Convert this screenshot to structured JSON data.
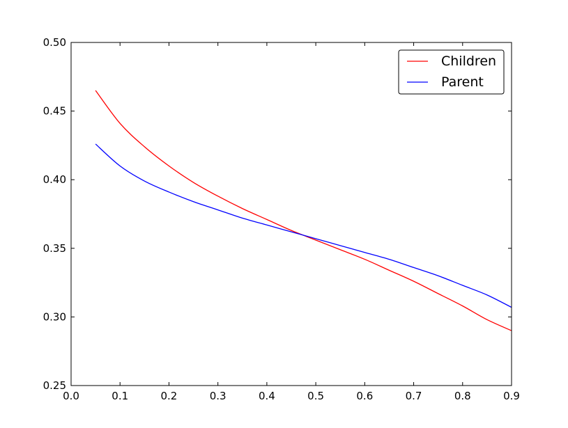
{
  "chart_data": {
    "type": "line",
    "title": "",
    "xlabel": "",
    "ylabel": "",
    "xlim": [
      0.0,
      0.9
    ],
    "ylim": [
      0.25,
      0.5
    ],
    "x_ticks": [
      "0.0",
      "0.1",
      "0.2",
      "0.3",
      "0.4",
      "0.5",
      "0.6",
      "0.7",
      "0.8",
      "0.9"
    ],
    "y_ticks": [
      "0.25",
      "0.30",
      "0.35",
      "0.40",
      "0.45",
      "0.50"
    ],
    "grid": false,
    "legend_position": "top-right",
    "series": [
      {
        "name": "Children",
        "color": "#ff0000",
        "x": [
          0.05,
          0.1,
          0.15,
          0.2,
          0.25,
          0.3,
          0.35,
          0.4,
          0.45,
          0.5,
          0.55,
          0.6,
          0.65,
          0.7,
          0.75,
          0.8,
          0.85,
          0.9
        ],
        "y": [
          0.465,
          0.441,
          0.424,
          0.41,
          0.398,
          0.388,
          0.379,
          0.371,
          0.363,
          0.356,
          0.349,
          0.342,
          0.334,
          0.326,
          0.317,
          0.308,
          0.298,
          0.29
        ]
      },
      {
        "name": "Parent",
        "color": "#0000ff",
        "x": [
          0.05,
          0.1,
          0.15,
          0.2,
          0.25,
          0.3,
          0.35,
          0.4,
          0.45,
          0.5,
          0.55,
          0.6,
          0.65,
          0.7,
          0.75,
          0.8,
          0.85,
          0.9
        ],
        "y": [
          0.426,
          0.41,
          0.399,
          0.391,
          0.384,
          0.378,
          0.372,
          0.367,
          0.362,
          0.357,
          0.352,
          0.347,
          0.342,
          0.336,
          0.33,
          0.323,
          0.316,
          0.307
        ]
      }
    ]
  }
}
